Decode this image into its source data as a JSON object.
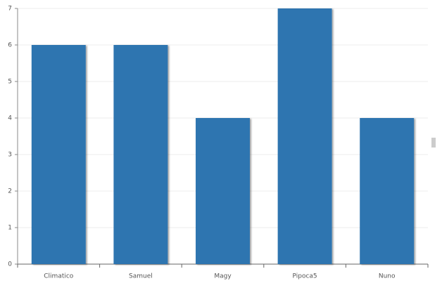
{
  "chart_data": {
    "type": "bar",
    "categories": [
      "Climatico",
      "Samuel",
      "Magy",
      "Pipoca5",
      "Nuno"
    ],
    "values": [
      6,
      6,
      4,
      7,
      4
    ],
    "color": "#2e75b0",
    "ylim": [
      0,
      7
    ],
    "yticks": [
      0,
      1,
      2,
      3,
      4,
      5,
      6,
      7
    ],
    "grid": true
  }
}
